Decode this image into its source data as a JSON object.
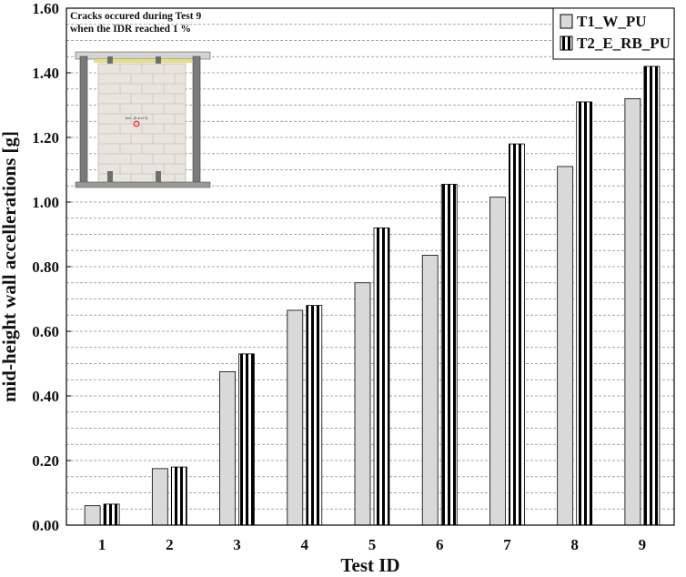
{
  "chart_data": {
    "type": "bar",
    "xlabel": "Test ID",
    "ylabel": "mid-height wall accellerations [g]",
    "categories": [
      "1",
      "2",
      "3",
      "4",
      "5",
      "6",
      "7",
      "8",
      "9"
    ],
    "series": [
      {
        "name": "T1_W_PU",
        "values": [
          0.06,
          0.175,
          0.475,
          0.665,
          0.75,
          0.835,
          1.015,
          1.11,
          1.32
        ]
      },
      {
        "name": "T2_E_RB_PU",
        "values": [
          0.065,
          0.18,
          0.53,
          0.68,
          0.92,
          1.055,
          1.18,
          1.31,
          1.42
        ]
      }
    ],
    "ylim": [
      0,
      1.6
    ],
    "y_ticks": [
      "0.00",
      "0.20",
      "0.40",
      "0.60",
      "0.80",
      "1.00",
      "1.20",
      "1.40",
      "1.60"
    ],
    "grid": "horizontal dashed minor lines every 0.05",
    "legend_position": "top-right",
    "series_styles": [
      "solid light gray",
      "black and white vertical stripes"
    ],
    "colors": {
      "series1_fill": "#d9d9d9",
      "stripe_dark": "#000000",
      "stripe_light": "#ffffff",
      "axis": "#000000",
      "grid": "#8c8c8c"
    },
    "annotation": {
      "line1": "Cracks occured during Test 9",
      "line2": "when the IDR reached 1 %",
      "inset_label": "Acc. (8 and 9)"
    }
  }
}
